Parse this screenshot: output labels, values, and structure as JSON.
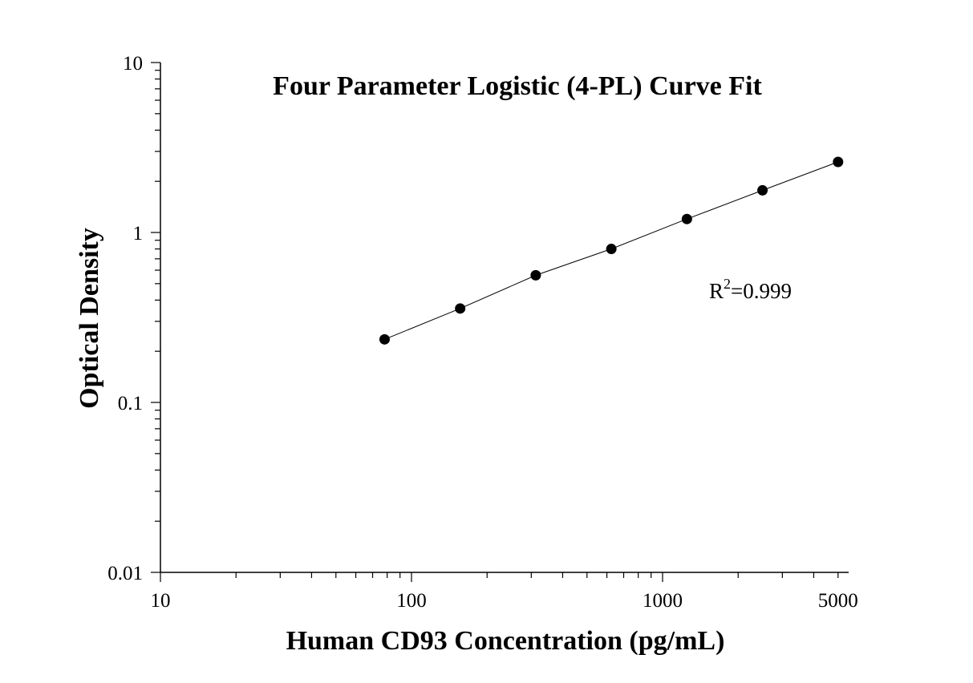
{
  "chart_data": {
    "type": "scatter",
    "title": "Four Parameter Logistic (4-PL) Curve Fit",
    "xlabel": "Human CD93 Concentration (pg/mL)",
    "ylabel": "Optical Density",
    "xscale": "log",
    "yscale": "log",
    "xlim": [
      10,
      5000
    ],
    "ylim": [
      0.01,
      10
    ],
    "x_ticks": [
      {
        "value": 10,
        "label": "10"
      },
      {
        "value": 100,
        "label": "100"
      },
      {
        "value": 1000,
        "label": "1000"
      },
      {
        "value": 5000,
        "label": "5000"
      }
    ],
    "y_ticks": [
      {
        "value": 0.01,
        "label": "0.01"
      },
      {
        "value": 0.1,
        "label": "0.1"
      },
      {
        "value": 1,
        "label": "1"
      },
      {
        "value": 10,
        "label": "10"
      }
    ],
    "series": [
      {
        "x": [
          78.13,
          156.25,
          312.5,
          625,
          1250,
          2500,
          5000
        ],
        "y": [
          0.235,
          0.357,
          0.56,
          0.8,
          1.2,
          1.77,
          2.6
        ],
        "color": "#000000",
        "marker": "circle",
        "line": true
      }
    ],
    "annotation": {
      "base": "R",
      "superscript": "2",
      "value": "=0.999"
    },
    "grid": false,
    "legend": "none"
  }
}
